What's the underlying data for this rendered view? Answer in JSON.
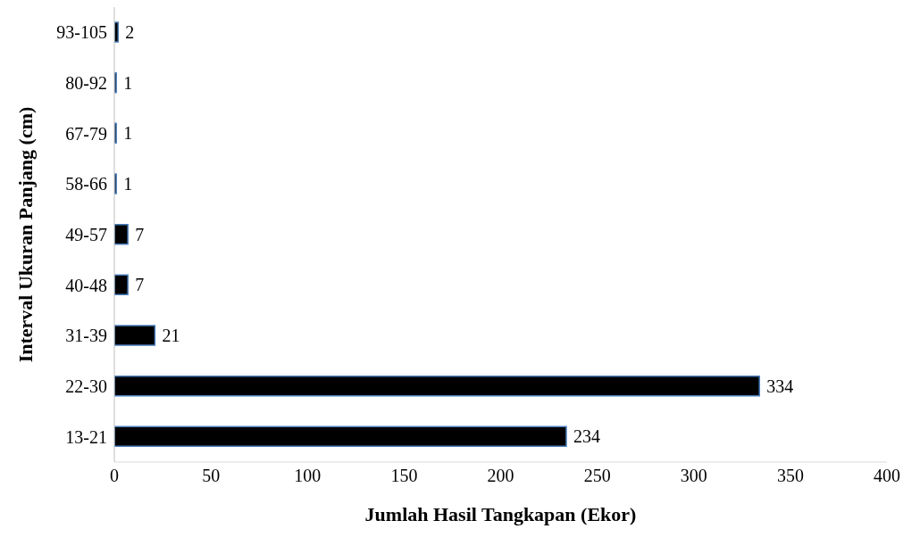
{
  "chart_data": {
    "type": "bar",
    "orientation": "horizontal",
    "xlabel": "Jumlah Hasil Tangkapan (Ekor)",
    "ylabel": "Interval Ukuran Panjang (cm)",
    "categories": [
      "93-105",
      "80-92",
      "67-79",
      "58-66",
      "49-57",
      "40-48",
      "31-39",
      "22-30",
      "13-21"
    ],
    "values": [
      2,
      1,
      1,
      1,
      7,
      7,
      21,
      334,
      234
    ],
    "color": "#000000",
    "xlim": [
      0,
      400
    ],
    "xticks": [
      0,
      50,
      100,
      150,
      200,
      250,
      300,
      350,
      400
    ],
    "grid": false,
    "data_labels": true
  }
}
